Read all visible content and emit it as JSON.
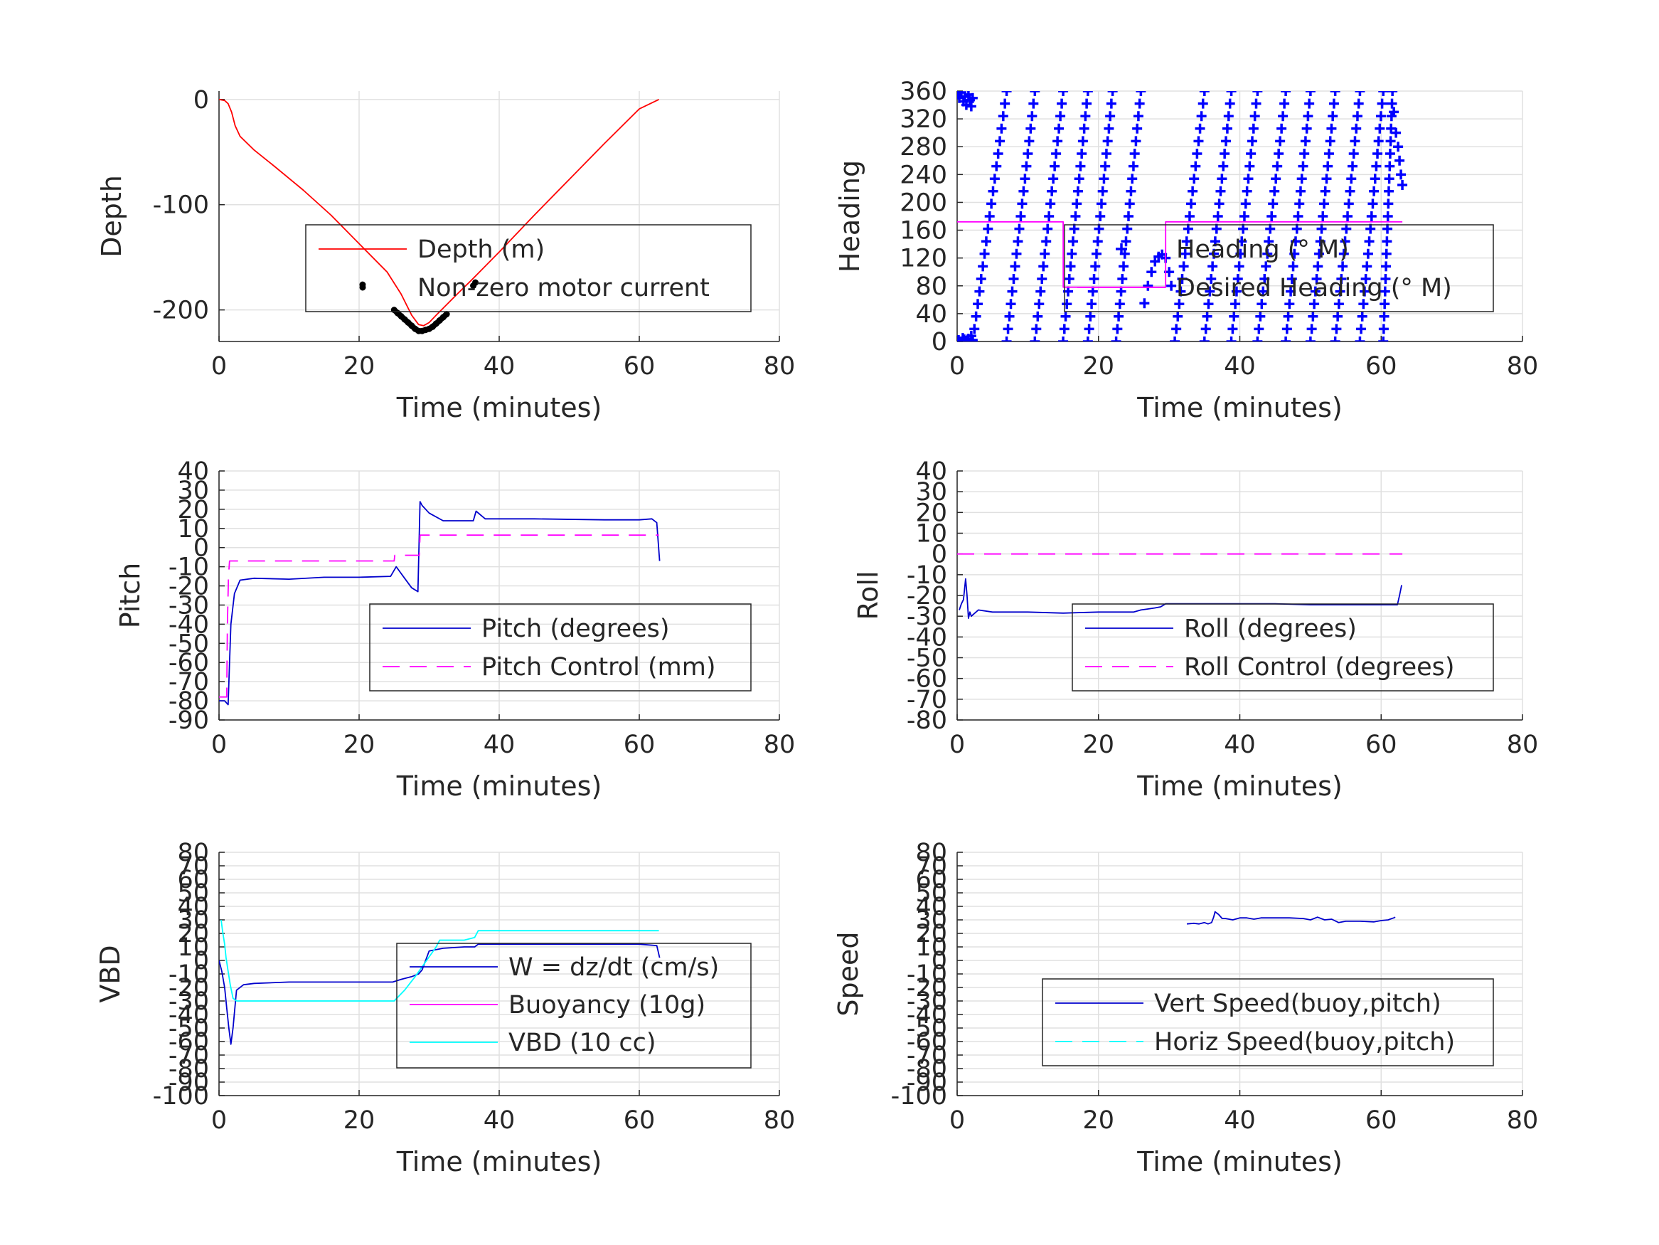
{
  "figure": {
    "background": "#ffffff"
  },
  "colors": {
    "red": "#ff0000",
    "black": "#000000",
    "blue": "#0000ff",
    "dark_blue": "#0000cc",
    "magenta": "#ff00ff",
    "cyan": "#00ffff",
    "grid": "#e0e0e0",
    "axis": "#262626"
  },
  "chart_data": [
    {
      "id": "depth",
      "type": "line",
      "xlabel": "Time (minutes)",
      "ylabel": "Depth",
      "xlim": [
        0,
        80
      ],
      "ylim": [
        -230,
        8
      ],
      "xticks": [
        0,
        20,
        40,
        60,
        80
      ],
      "yticks": [
        0,
        -100,
        -200
      ],
      "ytick_labels": [
        "0",
        "-100",
        "-200"
      ],
      "grid": true,
      "legend_position": "center-right",
      "series": [
        {
          "name": "Depth (m)",
          "color": "red",
          "style": "solid",
          "x": [
            0,
            0.8,
            1.3,
            1.8,
            2.3,
            3,
            5,
            8,
            12,
            16,
            20,
            24,
            26,
            27.5,
            28.5,
            29.2,
            30,
            31,
            32.5,
            34,
            36,
            40,
            45,
            50,
            55,
            60,
            62.8
          ],
          "y": [
            0,
            -1,
            -4,
            -12,
            -25,
            -35,
            -48,
            -64,
            -86,
            -110,
            -137,
            -164,
            -185,
            -205,
            -214,
            -215,
            -212,
            -205,
            -195,
            -185,
            -172,
            -145,
            -110,
            -76,
            -42,
            -9,
            0
          ]
        },
        {
          "name": "Non-zero motor current",
          "color": "black",
          "style": "dots",
          "x": [
            20.5,
            25,
            25.5,
            26,
            26.5,
            27,
            27.5,
            28,
            28.5,
            29,
            29.5,
            30,
            30.5,
            31,
            31.5,
            32,
            32.5,
            36.3,
            36.6
          ],
          "y": [
            -176,
            -200,
            -203,
            -206,
            -209,
            -212,
            -215,
            -218,
            -220,
            -220,
            -219,
            -218,
            -216,
            -213,
            -210,
            -207,
            -204,
            -177,
            -174
          ]
        }
      ]
    },
    {
      "id": "heading",
      "type": "scatter",
      "xlabel": "Time (minutes)",
      "ylabel": "Heading",
      "xlim": [
        0,
        80
      ],
      "ylim": [
        0,
        360
      ],
      "xticks": [
        0,
        20,
        40,
        60,
        80
      ],
      "yticks": [
        0,
        40,
        80,
        120,
        160,
        200,
        240,
        280,
        320,
        360
      ],
      "ytick_labels": [
        "0",
        "40",
        "80",
        "120",
        "160",
        "200",
        "240",
        "280",
        "320",
        "360"
      ],
      "grid": true,
      "legend_position": "center-right",
      "series": [
        {
          "name": "Heading (° M)",
          "color": "blue",
          "style": "plus",
          "sweeps": [
            [
              2.2,
              7.0
            ],
            [
              7.0,
              11.0
            ],
            [
              11.0,
              15.0
            ],
            [
              15.0,
              18.5
            ],
            [
              18.5,
              22.0
            ],
            [
              22.5,
              26.0
            ],
            [
              30.8,
              35.0
            ],
            [
              35.0,
              38.8
            ],
            [
              38.8,
              42.5
            ],
            [
              42.5,
              46.5
            ],
            [
              46.5,
              50.0
            ],
            [
              50.0,
              53.5
            ],
            [
              53.5,
              57.0
            ],
            [
              57.0,
              60.3
            ],
            [
              60.3,
              61.6
            ]
          ],
          "extra_x": [
            0,
            0.3,
            0.6,
            0.9,
            1.1,
            1.3,
            1.6,
            1.8,
            2.0,
            2.2,
            0.2,
            0.5,
            0.8,
            1.0,
            1.3,
            1.6,
            2.0,
            2.2,
            26.5,
            27.0,
            27.5,
            28.0,
            28.5,
            29.0,
            29.5,
            30.0,
            30.3,
            61.8,
            62.1,
            62.4,
            62.6,
            62.8,
            63.0
          ],
          "extra_y": [
            355,
            350,
            358,
            345,
            352,
            340,
            355,
            347,
            338,
            350,
            2,
            0,
            5,
            3,
            1,
            4,
            8,
            2,
            55,
            80,
            100,
            115,
            122,
            125,
            120,
            100,
            80,
            330,
            300,
            280,
            260,
            240,
            225
          ]
        },
        {
          "name": "Desired Heading (° M)",
          "color": "magenta",
          "style": "solid",
          "x": [
            0,
            15,
            15.01,
            29.5,
            29.5,
            63
          ],
          "y": [
            172,
            172,
            78,
            78,
            172,
            172
          ]
        }
      ]
    },
    {
      "id": "pitch",
      "type": "line",
      "xlabel": "Time (minutes)",
      "ylabel": "Pitch",
      "xlim": [
        0,
        80
      ],
      "ylim": [
        -90,
        40
      ],
      "xticks": [
        0,
        20,
        40,
        60,
        80
      ],
      "yticks": [
        40,
        30,
        20,
        10,
        0,
        -10,
        -20,
        -30,
        -40,
        -50,
        -60,
        -70,
        -80,
        -90
      ],
      "ytick_labels": [
        "40",
        "30",
        "20",
        "10",
        "0",
        "-10",
        "-20",
        "-30",
        "-40",
        "-50",
        "-60",
        "-70",
        "-80",
        "-90"
      ],
      "grid": true,
      "legend_position": "lower-right",
      "series": [
        {
          "name": "Pitch (degrees)",
          "color": "dark_blue",
          "style": "solid",
          "x": [
            0,
            0.8,
            1.3,
            1.5,
            1.7,
            2.2,
            3,
            5,
            10,
            15,
            20,
            24.5,
            25.3,
            26.5,
            27.5,
            28.4,
            28.7,
            29,
            30,
            32,
            35,
            36.3,
            36.7,
            38,
            45,
            55,
            60,
            61.8,
            62.5,
            62.9
          ],
          "y": [
            -80,
            -80,
            -82,
            -60,
            -40,
            -24,
            -17,
            -16,
            -16.5,
            -15.5,
            -15.5,
            -15,
            -10,
            -16,
            -21,
            -23,
            24,
            22,
            18,
            14,
            14,
            14,
            19,
            15,
            15,
            14.5,
            14.5,
            15,
            13,
            -7
          ]
        },
        {
          "name": "Pitch Control (mm)",
          "color": "magenta",
          "style": "dashed",
          "x": [
            0,
            1.1,
            1.2,
            1.35,
            1.5,
            25,
            25.1,
            26.5,
            28.6,
            28.7,
            62.8
          ],
          "y": [
            -78,
            -78,
            -40,
            -15,
            -7,
            -7,
            -4,
            -4,
            -4,
            6.5,
            6.5
          ]
        }
      ]
    },
    {
      "id": "roll",
      "type": "line",
      "xlabel": "Time (minutes)",
      "ylabel": "Roll",
      "xlim": [
        0,
        80
      ],
      "ylim": [
        -80,
        40
      ],
      "xticks": [
        0,
        20,
        40,
        60,
        80
      ],
      "yticks": [
        40,
        30,
        20,
        10,
        0,
        -10,
        -20,
        -30,
        -40,
        -50,
        -60,
        -70,
        -80
      ],
      "ytick_labels": [
        "40",
        "30",
        "20",
        "10",
        "0",
        "-10",
        "-20",
        "-30",
        "-40",
        "-50",
        "-60",
        "-70",
        "-80"
      ],
      "grid": true,
      "legend_position": "lower-right",
      "series": [
        {
          "name": "Roll (degrees)",
          "color": "dark_blue",
          "style": "solid",
          "x": [
            0.3,
            0.6,
            0.9,
            1.2,
            1.4,
            1.6,
            1.8,
            2.0,
            2.5,
            3,
            5,
            10,
            15,
            20,
            25,
            26,
            27,
            28,
            28.8,
            29.5,
            35,
            40,
            45,
            50,
            55,
            60,
            62.3,
            62.6,
            62.9
          ],
          "y": [
            -27,
            -24,
            -22,
            -12,
            -20,
            -31,
            -28,
            -30,
            -28.5,
            -27,
            -28,
            -28,
            -28.5,
            -28,
            -28,
            -27,
            -26.5,
            -26,
            -25.5,
            -24,
            -24,
            -24,
            -24,
            -24.5,
            -24.5,
            -24.5,
            -24.5,
            -20,
            -15
          ]
        },
        {
          "name": "Roll Control (degrees)",
          "color": "magenta",
          "style": "dashed",
          "x": [
            0,
            63
          ],
          "y": [
            0,
            0
          ]
        }
      ]
    },
    {
      "id": "vbd",
      "type": "line",
      "xlabel": "Time (minutes)",
      "ylabel": "VBD",
      "xlim": [
        0,
        80
      ],
      "ylim": [
        -100,
        80
      ],
      "xticks": [
        0,
        20,
        40,
        60,
        80
      ],
      "yticks": [
        80,
        70,
        60,
        50,
        40,
        30,
        20,
        10,
        0,
        -10,
        -20,
        -30,
        -40,
        -50,
        -60,
        -70,
        -80,
        -90,
        -100
      ],
      "ytick_labels": [
        "80",
        "70",
        "60",
        "50",
        "40",
        "30",
        "20",
        "10",
        "0",
        "-10",
        "-20",
        "-30",
        "-40",
        "-50",
        "-60",
        "-70",
        "-80",
        "-90",
        "-100"
      ],
      "grid": true,
      "legend_position": "center-right",
      "series": [
        {
          "name": "W = dz/dt (cm/s)",
          "color": "dark_blue",
          "style": "solid",
          "x": [
            0,
            0.4,
            0.8,
            1.1,
            1.4,
            1.7,
            2.0,
            2.5,
            3.5,
            5,
            10,
            15,
            20,
            24.8,
            26,
            27.5,
            28.5,
            29,
            30,
            32,
            35,
            36.5,
            37,
            40,
            45,
            50,
            55,
            60,
            62.5,
            62.9
          ],
          "y": [
            0,
            -8,
            -20,
            -35,
            -50,
            -62,
            -50,
            -22,
            -18,
            -17,
            -16,
            -16,
            -16,
            -16,
            -14,
            -12,
            -10,
            -7,
            7,
            9,
            10,
            10,
            12,
            12,
            12,
            12,
            12,
            12,
            11,
            2
          ]
        },
        {
          "name": "Buoyancy (10g)",
          "color": "magenta",
          "style": "solid",
          "x": [],
          "y": []
        },
        {
          "name": "VBD (10 cc)",
          "color": "cyan",
          "style": "solid",
          "x": [
            0.3,
            0.5,
            0.8,
            1.0,
            1.3,
            1.6,
            2.0,
            2.5,
            5,
            10,
            15,
            20,
            25,
            26.5,
            28,
            29.5,
            31,
            31.5,
            35,
            36.5,
            37,
            40,
            45,
            50,
            55,
            60,
            62.8
          ],
          "y": [
            30,
            22,
            12,
            2,
            -8,
            -18,
            -28,
            -30,
            -30,
            -30,
            -30,
            -30,
            -30,
            -22,
            -12,
            -1,
            10,
            15,
            15,
            17,
            22,
            22,
            22,
            22,
            22,
            22,
            22
          ]
        }
      ]
    },
    {
      "id": "speed",
      "type": "line",
      "xlabel": "Time (minutes)",
      "ylabel": "Speed",
      "xlim": [
        0,
        80
      ],
      "ylim": [
        -100,
        80
      ],
      "xticks": [
        0,
        20,
        40,
        60,
        80
      ],
      "yticks": [
        80,
        70,
        60,
        50,
        40,
        30,
        20,
        10,
        0,
        -10,
        -20,
        -30,
        -40,
        -50,
        -60,
        -70,
        -80,
        -90,
        -100
      ],
      "ytick_labels": [
        "80",
        "70",
        "60",
        "50",
        "40",
        "30",
        "20",
        "10",
        "0",
        "-10",
        "-20",
        "-30",
        "-40",
        "-50",
        "-60",
        "-70",
        "-80",
        "-90",
        "-100"
      ],
      "grid": true,
      "legend_position": "lower-right",
      "series": [
        {
          "name": "Vert Speed(buoy,pitch)",
          "color": "dark_blue",
          "style": "solid",
          "x": [
            32.5,
            33.5,
            34.2,
            35,
            35.5,
            36,
            36.3,
            36.5,
            37,
            37.5,
            38,
            39,
            40,
            41,
            42,
            43,
            45,
            47,
            49,
            50,
            51,
            52,
            53,
            54,
            55,
            57,
            59,
            60,
            61,
            61.5,
            61.8,
            62
          ],
          "y": [
            27,
            27.5,
            27,
            28,
            27,
            28,
            32,
            36,
            34,
            31,
            31,
            30,
            31.5,
            31.5,
            30.5,
            31.5,
            31.5,
            31.5,
            31,
            30,
            32,
            30,
            30.5,
            28,
            29,
            29,
            28.5,
            29.5,
            30,
            31,
            31.5,
            32
          ]
        },
        {
          "name": "Horiz Speed(buoy,pitch)",
          "color": "cyan",
          "style": "dashed",
          "x": [],
          "y": []
        }
      ]
    }
  ]
}
